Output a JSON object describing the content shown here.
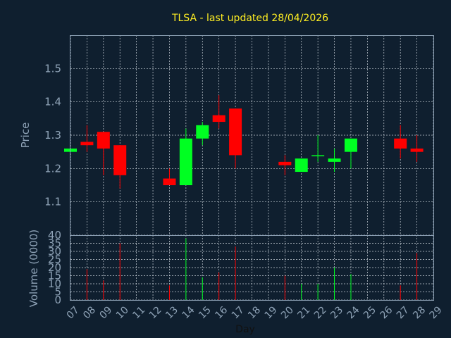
{
  "chart_data": {
    "type": "candlestick",
    "title": "TLSA - last updated 28/04/2026",
    "xlabel": "Day",
    "ylabel": "Price",
    "volume_label": "Volume (0000)",
    "x_ticks": [
      "07",
      "08",
      "09",
      "10",
      "11",
      "12",
      "13",
      "14",
      "15",
      "16",
      "17",
      "18",
      "19",
      "20",
      "21",
      "22",
      "23",
      "24",
      "25",
      "26",
      "27",
      "28",
      "29"
    ],
    "price_ticks": [
      "1.1",
      "1.2",
      "1.3",
      "1.4",
      "1.5"
    ],
    "volume_ticks": [
      "0",
      "5",
      "10",
      "15",
      "20",
      "25",
      "30",
      "35",
      "40"
    ],
    "price_range": [
      1.0,
      1.6
    ],
    "volume_range": [
      0,
      40
    ],
    "grid": true,
    "up_color": "#00ff22",
    "down_color": "#ff0000",
    "candles": [
      {
        "day": "07",
        "open": 1.25,
        "close": 1.26,
        "high": 1.26,
        "low": 1.25,
        "volume": 0
      },
      {
        "day": "08",
        "open": 1.28,
        "close": 1.27,
        "high": 1.33,
        "low": 1.25,
        "volume": 19
      },
      {
        "day": "09",
        "open": 1.31,
        "close": 1.26,
        "high": 1.31,
        "low": 1.18,
        "volume": 12
      },
      {
        "day": "10",
        "open": 1.27,
        "close": 1.18,
        "high": 1.27,
        "low": 1.14,
        "volume": 35
      },
      {
        "day": "13",
        "open": 1.17,
        "close": 1.15,
        "high": 1.2,
        "low": 1.15,
        "volume": 9
      },
      {
        "day": "14",
        "open": 1.15,
        "close": 1.29,
        "high": 1.32,
        "low": 1.15,
        "volume": 38
      },
      {
        "day": "15",
        "open": 1.29,
        "close": 1.33,
        "high": 1.34,
        "low": 1.27,
        "volume": 14
      },
      {
        "day": "16",
        "open": 1.36,
        "close": 1.34,
        "high": 1.42,
        "low": 1.32,
        "volume": 17
      },
      {
        "day": "17",
        "open": 1.38,
        "close": 1.24,
        "high": 1.38,
        "low": 1.2,
        "volume": 33
      },
      {
        "day": "20",
        "open": 1.22,
        "close": 1.21,
        "high": 1.24,
        "low": 1.18,
        "volume": 15
      },
      {
        "day": "21",
        "open": 1.19,
        "close": 1.23,
        "high": 1.23,
        "low": 1.19,
        "volume": 10
      },
      {
        "day": "22",
        "open": 1.24,
        "close": 1.24,
        "high": 1.3,
        "low": 1.22,
        "volume": 10
      },
      {
        "day": "23",
        "open": 1.22,
        "close": 1.23,
        "high": 1.26,
        "low": 1.19,
        "volume": 20
      },
      {
        "day": "24",
        "open": 1.25,
        "close": 1.29,
        "high": 1.29,
        "low": 1.2,
        "volume": 16
      },
      {
        "day": "27",
        "open": 1.29,
        "close": 1.26,
        "high": 1.33,
        "low": 1.23,
        "volume": 9
      },
      {
        "day": "28",
        "open": 1.26,
        "close": 1.25,
        "high": 1.3,
        "low": 1.22,
        "volume": 29
      }
    ]
  }
}
